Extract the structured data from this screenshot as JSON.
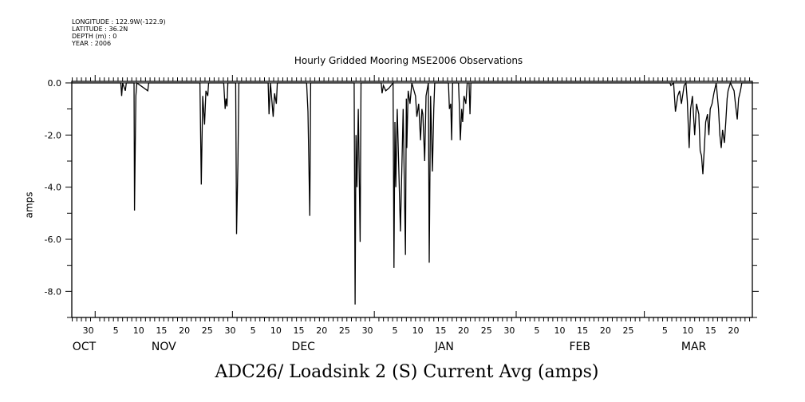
{
  "meta": {
    "longitude": "LONGITUDE : 122.9W(-122.9)",
    "latitude": "LATITUDE : 36.2N",
    "depth": "DEPTH (m) : 0",
    "year": "YEAR : 2006"
  },
  "chart_data": {
    "type": "line",
    "title": "Hourly Gridded Mooring MSE2006 Observations",
    "xlabel": "ADC26/ Loadsink 2 (S) Current Avg (amps)",
    "ylabel": "amps",
    "x_units": "days since 2006-10-01",
    "xlim": [
      25.9,
      174.6
    ],
    "ylim": [
      -9.0,
      0.06
    ],
    "grid": false,
    "y_ticks": [
      {
        "v": 0,
        "label": "0.0"
      },
      {
        "v": -2,
        "label": "-2.0"
      },
      {
        "v": -4,
        "label": "-4.0"
      },
      {
        "v": -6,
        "label": "-6.0"
      },
      {
        "v": -8,
        "label": "-8.0"
      }
    ],
    "x_tick_labels": [
      {
        "d": 29.5,
        "label": "30"
      },
      {
        "d": 35.5,
        "label": "5"
      },
      {
        "d": 40.5,
        "label": "10"
      },
      {
        "d": 45.5,
        "label": "15"
      },
      {
        "d": 50.5,
        "label": "20"
      },
      {
        "d": 55.5,
        "label": "25"
      },
      {
        "d": 60.5,
        "label": "30"
      },
      {
        "d": 65.5,
        "label": "5"
      },
      {
        "d": 70.5,
        "label": "10"
      },
      {
        "d": 75.5,
        "label": "15"
      },
      {
        "d": 80.5,
        "label": "20"
      },
      {
        "d": 85.5,
        "label": "25"
      },
      {
        "d": 90.5,
        "label": "30"
      },
      {
        "d": 96.5,
        "label": "5"
      },
      {
        "d": 101.5,
        "label": "10"
      },
      {
        "d": 106.5,
        "label": "15"
      },
      {
        "d": 111.5,
        "label": "20"
      },
      {
        "d": 116.5,
        "label": "25"
      },
      {
        "d": 121.5,
        "label": "30"
      },
      {
        "d": 127.5,
        "label": "5"
      },
      {
        "d": 132.5,
        "label": "10"
      },
      {
        "d": 137.5,
        "label": "15"
      },
      {
        "d": 142.5,
        "label": "20"
      },
      {
        "d": 147.5,
        "label": "25"
      },
      {
        "d": 155.5,
        "label": "5"
      },
      {
        "d": 160.5,
        "label": "10"
      },
      {
        "d": 165.5,
        "label": "15"
      },
      {
        "d": 170.5,
        "label": "20"
      }
    ],
    "month_labels": [
      {
        "d": 28.6,
        "label": "OCT"
      },
      {
        "d": 46.0,
        "label": "NOV"
      },
      {
        "d": 76.5,
        "label": "DEC"
      },
      {
        "d": 107.3,
        "label": "JAN"
      },
      {
        "d": 136.9,
        "label": "FEB"
      },
      {
        "d": 161.8,
        "label": "MAR"
      }
    ],
    "month_starts": [
      31,
      61,
      92,
      123,
      151
    ],
    "series": [
      {
        "name": "ADC26 Loadsink 2 (S) Current Avg",
        "color": "#000000",
        "points": [
          [
            26,
            0
          ],
          [
            36.6,
            0
          ],
          [
            36.8,
            -0.5
          ],
          [
            37.0,
            0
          ],
          [
            37.6,
            -0.3
          ],
          [
            37.8,
            0
          ],
          [
            39.5,
            0
          ],
          [
            39.6,
            -4.9
          ],
          [
            39.8,
            -2.0
          ],
          [
            39.9,
            -0.5
          ],
          [
            40.1,
            0
          ],
          [
            42.5,
            -0.3
          ],
          [
            42.7,
            0
          ],
          [
            53.9,
            0
          ],
          [
            54.2,
            -3.9
          ],
          [
            54.5,
            -0.5
          ],
          [
            54.9,
            -1.6
          ],
          [
            55.2,
            -0.3
          ],
          [
            55.6,
            -0.5
          ],
          [
            55.8,
            0
          ],
          [
            59.1,
            0
          ],
          [
            59.4,
            -1.0
          ],
          [
            59.6,
            -0.6
          ],
          [
            59.8,
            -0.9
          ],
          [
            60.0,
            0
          ],
          [
            61.7,
            0
          ],
          [
            61.9,
            -5.8
          ],
          [
            62.2,
            -3.1
          ],
          [
            62.4,
            0
          ],
          [
            68.8,
            0
          ],
          [
            69.0,
            -1.2
          ],
          [
            69.3,
            0
          ],
          [
            69.9,
            -1.3
          ],
          [
            70.2,
            -0.4
          ],
          [
            70.6,
            -0.8
          ],
          [
            70.8,
            0
          ],
          [
            77.2,
            0
          ],
          [
            77.5,
            -1.1
          ],
          [
            77.9,
            -5.1
          ],
          [
            78.1,
            0
          ],
          [
            87.6,
            0
          ],
          [
            87.8,
            -8.5
          ],
          [
            88.0,
            -2.0
          ],
          [
            88.2,
            -4.0
          ],
          [
            88.5,
            -1.0
          ],
          [
            88.9,
            -6.1
          ],
          [
            89.1,
            0
          ],
          [
            93.5,
            0
          ],
          [
            93.7,
            -0.4
          ],
          [
            94.0,
            -0.1
          ],
          [
            94.5,
            -0.3
          ],
          [
            95.2,
            -0.2
          ],
          [
            96.1,
            0
          ],
          [
            96.3,
            -7.1
          ],
          [
            96.5,
            -1.5
          ],
          [
            96.7,
            -4.0
          ],
          [
            97.0,
            -1.0
          ],
          [
            97.7,
            -5.7
          ],
          [
            98.0,
            -3.4
          ],
          [
            98.3,
            -1.0
          ],
          [
            98.8,
            -6.6
          ],
          [
            99.0,
            -0.6
          ],
          [
            99.1,
            -2.5
          ],
          [
            99.4,
            -0.3
          ],
          [
            99.8,
            -0.8
          ],
          [
            100.2,
            0
          ],
          [
            101.0,
            -0.5
          ],
          [
            101.3,
            -1.3
          ],
          [
            101.7,
            -0.8
          ],
          [
            102.1,
            -2.2
          ],
          [
            102.4,
            -1.0
          ],
          [
            102.6,
            -1.2
          ],
          [
            103.0,
            -3.0
          ],
          [
            103.3,
            -0.5
          ],
          [
            103.8,
            0
          ],
          [
            104.0,
            -6.9
          ],
          [
            104.3,
            -0.5
          ],
          [
            104.7,
            -3.4
          ],
          [
            105.0,
            -1.0
          ],
          [
            105.2,
            0
          ],
          [
            108.2,
            0
          ],
          [
            108.4,
            -1.0
          ],
          [
            108.7,
            -0.8
          ],
          [
            108.9,
            -2.2
          ],
          [
            109.1,
            0
          ],
          [
            110.4,
            0
          ],
          [
            110.6,
            -1.0
          ],
          [
            110.8,
            -2.2
          ],
          [
            111.1,
            -1.0
          ],
          [
            111.3,
            -1.5
          ],
          [
            111.6,
            -0.5
          ],
          [
            112.0,
            -0.8
          ],
          [
            112.3,
            0
          ],
          [
            112.7,
            0
          ],
          [
            112.9,
            -1.2
          ],
          [
            113.1,
            0
          ],
          [
            156.6,
            0
          ],
          [
            156.8,
            -0.1
          ],
          [
            157.4,
            0
          ],
          [
            157.8,
            -1.1
          ],
          [
            158.3,
            -0.5
          ],
          [
            158.7,
            -0.3
          ],
          [
            159.1,
            -0.8
          ],
          [
            159.7,
            -0.1
          ],
          [
            160.1,
            0
          ],
          [
            160.4,
            -0.7
          ],
          [
            160.8,
            -2.5
          ],
          [
            161.1,
            -1.0
          ],
          [
            161.5,
            -0.5
          ],
          [
            162.0,
            -2.0
          ],
          [
            162.4,
            -0.8
          ],
          [
            162.9,
            -1.2
          ],
          [
            163.2,
            -2.6
          ],
          [
            163.5,
            -2.8
          ],
          [
            163.8,
            -3.5
          ],
          [
            164.1,
            -2.5
          ],
          [
            164.4,
            -1.5
          ],
          [
            164.8,
            -1.2
          ],
          [
            165.1,
            -2.0
          ],
          [
            165.4,
            -1.0
          ],
          [
            165.8,
            -0.8
          ],
          [
            166.2,
            -0.4
          ],
          [
            166.7,
            0
          ],
          [
            167.2,
            -1.0
          ],
          [
            167.5,
            -2.0
          ],
          [
            167.8,
            -2.5
          ],
          [
            168.1,
            -1.8
          ],
          [
            168.5,
            -2.3
          ],
          [
            168.8,
            -1.5
          ],
          [
            169.1,
            -0.6
          ],
          [
            169.3,
            -0.3
          ],
          [
            169.8,
            0
          ],
          [
            170.6,
            -0.3
          ],
          [
            170.9,
            -0.8
          ],
          [
            171.3,
            -1.4
          ],
          [
            171.6,
            -0.6
          ],
          [
            172.0,
            -0.3
          ],
          [
            172.3,
            0
          ],
          [
            174.6,
            0
          ]
        ]
      }
    ]
  }
}
